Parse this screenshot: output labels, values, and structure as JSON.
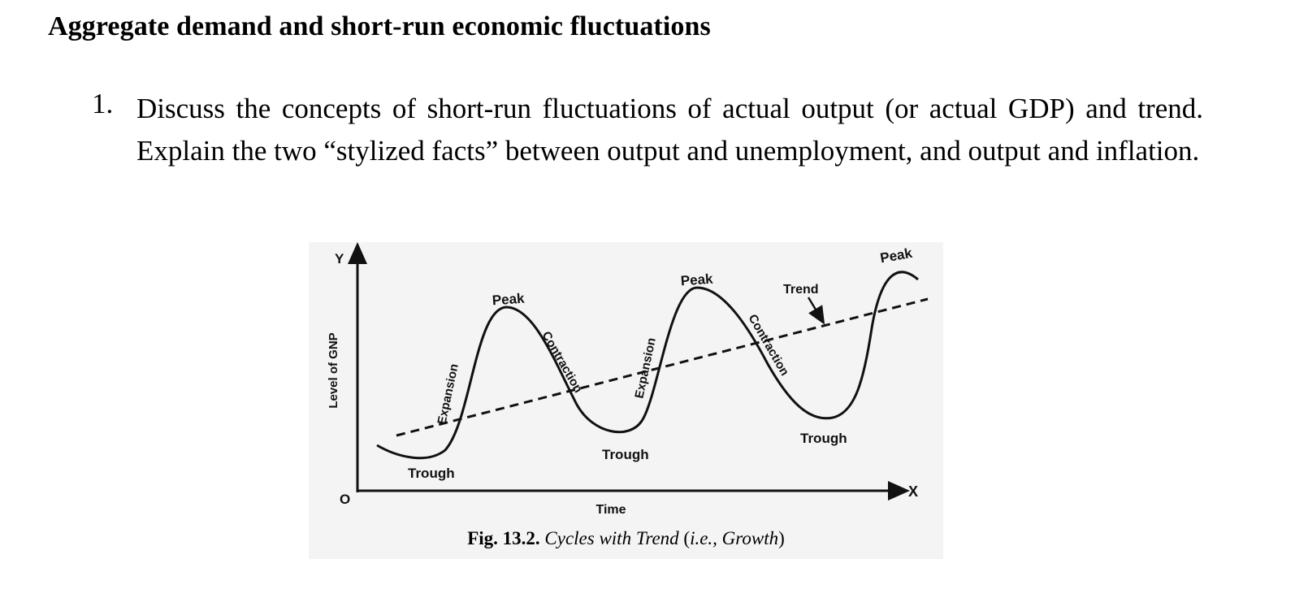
{
  "heading": "Aggregate demand and short-run economic fluctuations",
  "question": {
    "number": "1.",
    "text": "Discuss the concepts of short-run fluctuations of actual output (or actual GDP) and trend. Explain the two “stylized facts” between output and unemployment, and output and inflation."
  },
  "figure": {
    "axes": {
      "y_symbol": "Y",
      "x_symbol": "X",
      "origin": "O",
      "y_label": "Level of GNP",
      "x_label": "Time"
    },
    "labels": {
      "peak": "Peak",
      "trough": "Trough",
      "expansion": "Expansion",
      "contraction": "Contraction",
      "trend": "Trend"
    },
    "caption": {
      "fig_no": "Fig. 13.2.",
      "title": "Cycles with Trend",
      "open": " (",
      "paren_text": "i.e., Growth",
      "close": ")"
    },
    "line_color": "#111111"
  }
}
